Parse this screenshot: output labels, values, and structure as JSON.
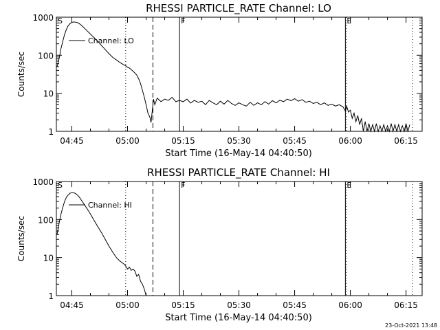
{
  "footer": {
    "timestamp": "23-Oct-2021 13:48"
  },
  "chart_data": [
    {
      "type": "line",
      "title": "RHESSI PARTICLE_RATE Channel: LO",
      "xlabel": "Start Time (16-May-14 04:40:50)",
      "ylabel": "Counts/sec",
      "xlim": [
        "04:40:50",
        "06:19:20"
      ],
      "ylim": [
        1,
        1000
      ],
      "yscale": "log",
      "xticks": [
        "04:45",
        "05:00",
        "05:15",
        "05:30",
        "05:45",
        "06:00",
        "06:15"
      ],
      "yticks": [
        "1",
        "10",
        "100",
        "1000"
      ],
      "legend": {
        "label": "Channel: LO",
        "position": "top-left"
      },
      "markers": [
        {
          "time": "04:40:50",
          "style": "solid",
          "label": "S"
        },
        {
          "time": "04:59:30",
          "style": "dotted",
          "label": ""
        },
        {
          "time": "05:06:50",
          "style": "dashed",
          "label": ""
        },
        {
          "time": "05:14:00",
          "style": "solid",
          "label": "F"
        },
        {
          "time": "05:58:40",
          "style": "solid",
          "label": "E"
        },
        {
          "time": "05:59:00",
          "style": "dotted",
          "label": ""
        },
        {
          "time": "06:16:50",
          "style": "dotted",
          "label": ""
        }
      ],
      "series": [
        {
          "name": "Channel: LO",
          "points": [
            [
              "04:41:00",
              50
            ],
            [
              "04:41:20",
              65
            ],
            [
              "04:41:40",
              90
            ],
            [
              "04:42:00",
              140
            ],
            [
              "04:42:30",
              220
            ],
            [
              "04:43:00",
              340
            ],
            [
              "04:43:30",
              470
            ],
            [
              "04:44:00",
              590
            ],
            [
              "04:44:30",
              680
            ],
            [
              "04:45:00",
              730
            ],
            [
              "04:45:30",
              750
            ],
            [
              "04:46:00",
              740
            ],
            [
              "04:46:30",
              720
            ],
            [
              "04:47:00",
              680
            ],
            [
              "04:47:30",
              620
            ],
            [
              "04:48:00",
              560
            ],
            [
              "04:49:00",
              450
            ],
            [
              "04:50:00",
              360
            ],
            [
              "04:51:00",
              290
            ],
            [
              "04:52:00",
              230
            ],
            [
              "04:53:00",
              180
            ],
            [
              "04:54:00",
              140
            ],
            [
              "04:55:00",
              110
            ],
            [
              "04:56:00",
              88
            ],
            [
              "04:57:00",
              75
            ],
            [
              "04:58:00",
              64
            ],
            [
              "04:59:00",
              56
            ],
            [
              "04:59:40",
              52
            ],
            [
              "05:00:00",
              48
            ],
            [
              "05:00:30",
              46
            ],
            [
              "05:01:00",
              42
            ],
            [
              "05:01:30",
              38
            ],
            [
              "05:02:00",
              34
            ],
            [
              "05:02:30",
              30
            ],
            [
              "05:03:00",
              24
            ],
            [
              "05:03:30",
              18
            ],
            [
              "05:04:00",
              12
            ],
            [
              "05:04:30",
              8
            ],
            [
              "05:05:00",
              5
            ],
            [
              "05:05:30",
              3
            ],
            [
              "05:06:00",
              2.4
            ],
            [
              "05:06:20",
              1.7
            ],
            [
              "05:06:40",
              3.5
            ],
            [
              "05:07:00",
              7
            ],
            [
              "05:07:20",
              5
            ],
            [
              "05:08:00",
              7.5
            ],
            [
              "05:09:00",
              6
            ],
            [
              "05:10:00",
              7
            ],
            [
              "05:11:00",
              6.5
            ],
            [
              "05:12:00",
              7.8
            ],
            [
              "05:13:00",
              6
            ],
            [
              "05:14:00",
              6.5
            ],
            [
              "05:15:00",
              6
            ],
            [
              "05:16:00",
              7
            ],
            [
              "05:17:00",
              5.5
            ],
            [
              "05:18:00",
              6.5
            ],
            [
              "05:19:00",
              5.8
            ],
            [
              "05:20:00",
              6.2
            ],
            [
              "05:21:00",
              5
            ],
            [
              "05:22:00",
              6.5
            ],
            [
              "05:23:00",
              5.6
            ],
            [
              "05:24:00",
              5
            ],
            [
              "05:25:00",
              6.2
            ],
            [
              "05:26:00",
              5.2
            ],
            [
              "05:27:00",
              6.5
            ],
            [
              "05:28:00",
              5.4
            ],
            [
              "05:29:00",
              4.8
            ],
            [
              "05:30:00",
              5.6
            ],
            [
              "05:31:00",
              5
            ],
            [
              "05:32:00",
              4.6
            ],
            [
              "05:33:00",
              5.8
            ],
            [
              "05:34:00",
              4.8
            ],
            [
              "05:35:00",
              5.6
            ],
            [
              "05:36:00",
              5
            ],
            [
              "05:37:00",
              6
            ],
            [
              "05:38:00",
              5.2
            ],
            [
              "05:39:00",
              6.4
            ],
            [
              "05:40:00",
              5.6
            ],
            [
              "05:41:00",
              6.6
            ],
            [
              "05:42:00",
              6
            ],
            [
              "05:43:00",
              7
            ],
            [
              "05:44:00",
              6.4
            ],
            [
              "05:45:00",
              7.2
            ],
            [
              "05:46:00",
              6.2
            ],
            [
              "05:47:00",
              6.8
            ],
            [
              "05:48:00",
              5.8
            ],
            [
              "05:49:00",
              6.2
            ],
            [
              "05:50:00",
              5.4
            ],
            [
              "05:51:00",
              5.8
            ],
            [
              "05:52:00",
              5
            ],
            [
              "05:53:00",
              5.6
            ],
            [
              "05:54:00",
              4.8
            ],
            [
              "05:55:00",
              5.2
            ],
            [
              "05:56:00",
              4.6
            ],
            [
              "05:57:00",
              5
            ],
            [
              "05:58:00",
              4.4
            ],
            [
              "05:58:40",
              3.4
            ],
            [
              "05:59:00",
              4.6
            ],
            [
              "05:59:30",
              3.2
            ],
            [
              "06:00:00",
              3.6
            ],
            [
              "06:00:30",
              2.2
            ],
            [
              "06:01:00",
              3
            ],
            [
              "06:01:30",
              1.8
            ],
            [
              "06:02:00",
              2.6
            ],
            [
              "06:02:30",
              1.5
            ],
            [
              "06:03:00",
              2.2
            ],
            [
              "06:03:30",
              1
            ],
            [
              "06:04:00",
              1.8
            ],
            [
              "06:04:30",
              1
            ],
            [
              "06:05:00",
              1.6
            ],
            [
              "06:05:30",
              1
            ],
            [
              "06:06:00",
              1.5
            ],
            [
              "06:06:30",
              1
            ],
            [
              "06:07:00",
              1.6
            ],
            [
              "06:07:30",
              1
            ],
            [
              "06:08:00",
              1.4
            ],
            [
              "06:08:30",
              1
            ],
            [
              "06:09:00",
              1.5
            ],
            [
              "06:09:30",
              1
            ],
            [
              "06:10:00",
              1.4
            ],
            [
              "06:10:30",
              1
            ],
            [
              "06:11:00",
              1.6
            ],
            [
              "06:11:30",
              1
            ],
            [
              "06:12:00",
              1.5
            ],
            [
              "06:12:30",
              1
            ],
            [
              "06:13:00",
              1.5
            ],
            [
              "06:13:30",
              1
            ],
            [
              "06:14:00",
              1.4
            ],
            [
              "06:14:30",
              1
            ],
            [
              "06:15:00",
              1.6
            ],
            [
              "06:15:30",
              1
            ],
            [
              "06:16:00",
              1.5
            ]
          ]
        }
      ]
    },
    {
      "type": "line",
      "title": "RHESSI PARTICLE_RATE Channel: HI",
      "xlabel": "Start Time (16-May-14 04:40:50)",
      "ylabel": "Counts/sec",
      "xlim": [
        "04:40:50",
        "06:19:20"
      ],
      "ylim": [
        1,
        1000
      ],
      "yscale": "log",
      "xticks": [
        "04:45",
        "05:00",
        "05:15",
        "05:30",
        "05:45",
        "06:00",
        "06:15"
      ],
      "yticks": [
        "1",
        "10",
        "100",
        "1000"
      ],
      "legend": {
        "label": "Channel: HI",
        "position": "top-left"
      },
      "markers": [
        {
          "time": "04:40:50",
          "style": "solid",
          "label": "S"
        },
        {
          "time": "04:59:30",
          "style": "dotted",
          "label": ""
        },
        {
          "time": "05:06:50",
          "style": "dashed",
          "label": ""
        },
        {
          "time": "05:14:00",
          "style": "solid",
          "label": "F"
        },
        {
          "time": "05:58:40",
          "style": "solid",
          "label": "E"
        },
        {
          "time": "05:59:00",
          "style": "dotted",
          "label": ""
        },
        {
          "time": "06:16:50",
          "style": "dotted",
          "label": ""
        }
      ],
      "series": [
        {
          "name": "Channel: HI",
          "points": [
            [
              "04:41:00",
              40
            ],
            [
              "04:41:20",
              60
            ],
            [
              "04:41:40",
              90
            ],
            [
              "04:42:00",
              130
            ],
            [
              "04:42:30",
              200
            ],
            [
              "04:43:00",
              290
            ],
            [
              "04:43:30",
              380
            ],
            [
              "04:44:00",
              440
            ],
            [
              "04:44:30",
              490
            ],
            [
              "04:45:00",
              510
            ],
            [
              "04:45:30",
              505
            ],
            [
              "04:46:00",
              480
            ],
            [
              "04:46:30",
              440
            ],
            [
              "04:47:00",
              390
            ],
            [
              "04:47:30",
              330
            ],
            [
              "04:48:00",
              280
            ],
            [
              "04:49:00",
              200
            ],
            [
              "04:50:00",
              140
            ],
            [
              "04:51:00",
              95
            ],
            [
              "04:52:00",
              65
            ],
            [
              "04:53:00",
              45
            ],
            [
              "04:54:00",
              30
            ],
            [
              "04:55:00",
              20
            ],
            [
              "04:56:00",
              14
            ],
            [
              "04:57:00",
              10
            ],
            [
              "04:58:00",
              8
            ],
            [
              "04:59:00",
              6.8
            ],
            [
              "04:59:30",
              6
            ],
            [
              "05:00:00",
              5
            ],
            [
              "05:00:30",
              5.6
            ],
            [
              "05:01:00",
              4.6
            ],
            [
              "05:01:30",
              5
            ],
            [
              "05:02:00",
              4.4
            ],
            [
              "05:02:30",
              3.2
            ],
            [
              "05:03:00",
              3.6
            ],
            [
              "05:03:30",
              2.4
            ],
            [
              "05:04:00",
              2
            ],
            [
              "05:04:30",
              1.5
            ],
            [
              "05:05:00",
              1
            ]
          ]
        }
      ]
    }
  ]
}
